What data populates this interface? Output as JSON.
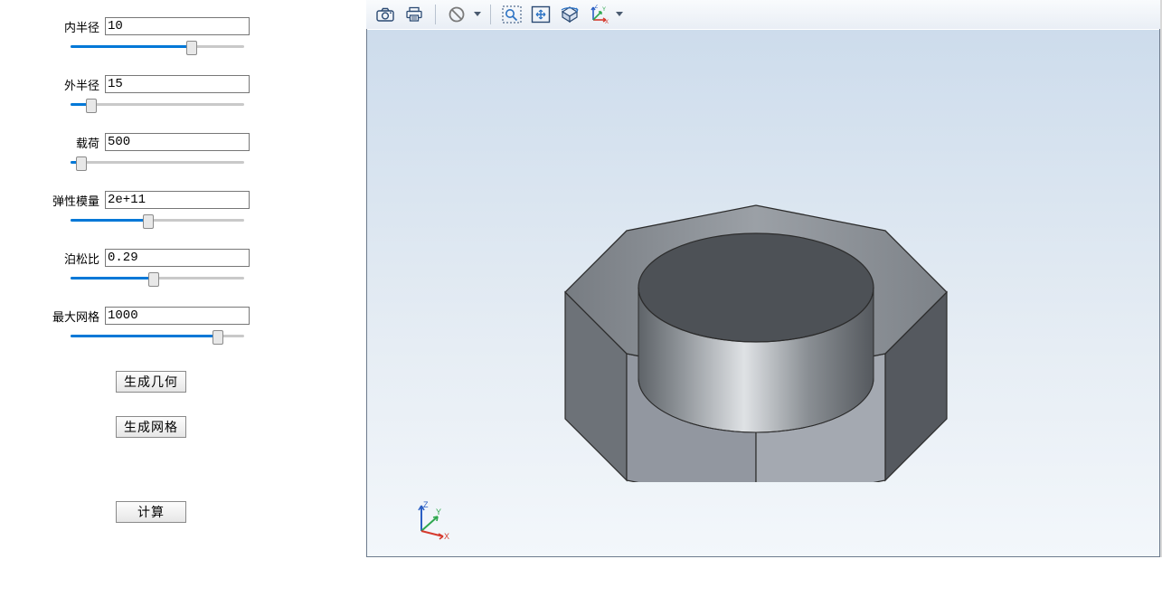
{
  "panel": {
    "params": [
      {
        "key": "inner_radius",
        "label": "内半径",
        "value": "10",
        "slider_pct": 70
      },
      {
        "key": "outer_radius",
        "label": "外半径",
        "value": "15",
        "slider_pct": 12
      },
      {
        "key": "load",
        "label": "载荷",
        "value": "500",
        "slider_pct": 6
      },
      {
        "key": "elastic_mod",
        "label": "弹性模量",
        "value": "2e+11",
        "slider_pct": 45
      },
      {
        "key": "poisson",
        "label": "泊松比",
        "value": "0.29",
        "slider_pct": 48
      },
      {
        "key": "max_mesh",
        "label": "最大网格",
        "value": "1000",
        "slider_pct": 85
      }
    ],
    "buttons": {
      "gen_geometry": "生成几何",
      "gen_mesh": "生成网格",
      "compute": "计算"
    }
  },
  "toolbar": {
    "icons": {
      "camera": "camera-icon",
      "print": "print-icon",
      "nosign": "no-entry-icon",
      "zoombox": "zoom-box-icon",
      "fit": "fit-view-icon",
      "rotate": "rotate-view-icon",
      "axes": "axes-icon"
    },
    "colors": {
      "icon_stroke": "#2b4a73",
      "icon_accent": "#2b72c4",
      "nosign": "#7a7a7a",
      "sep": "#b8c2cf"
    }
  },
  "viewport": {
    "bg_top": "#cddcec",
    "bg_mid": "#e6edf4",
    "bg_bot": "#f3f7fb",
    "border": "#6d7b8d",
    "axis": {
      "x_color": "#d63a2e",
      "y_color": "#2fa84f",
      "z_color": "#2b5fc4",
      "x_label": "X",
      "y_label": "Y",
      "z_label": "Z"
    },
    "geometry": {
      "type": "octagonal_nut",
      "material_color": "#9aa0a6",
      "edge_color": "#2c2c2c",
      "hole_inner": "#c2c5c9",
      "hole_shadow": "#6f7478"
    }
  }
}
